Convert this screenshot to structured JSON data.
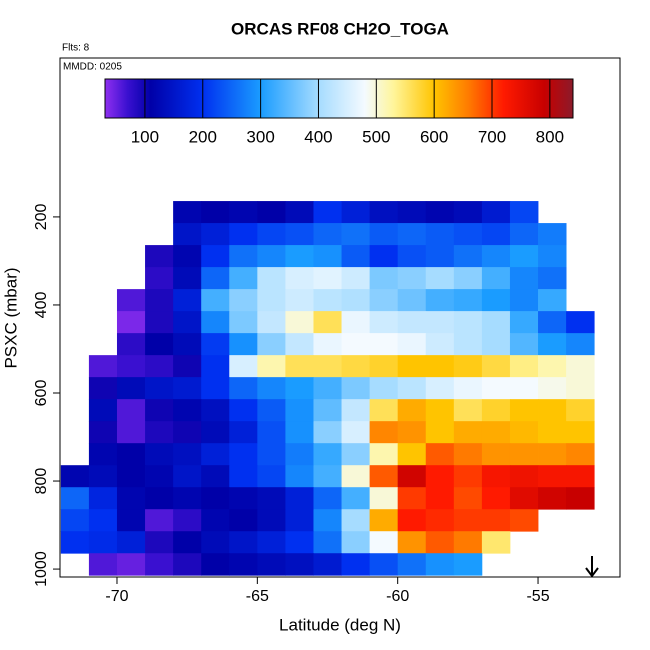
{
  "chart_data": {
    "type": "heatmap",
    "title": "ORCAS RF08 CH2O_TOGA",
    "annotations": [
      "Flts: 8",
      "MMDD: 0205"
    ],
    "x_label": "Latitude (deg N)",
    "y_label": "PSXC (mbar)",
    "xlim": [
      -72.03,
      -52.08
    ],
    "ylim": [
      1018,
      -161
    ],
    "xticks": [
      -70,
      -65,
      -60,
      -55
    ],
    "yticks": [
      200,
      400,
      600,
      800,
      1000
    ],
    "x_bins": [
      -72,
      -71,
      -70,
      -69,
      -68,
      -67,
      -66,
      -65,
      -64,
      -63,
      -62,
      -61,
      -60,
      -59,
      -58,
      -57,
      -56,
      -55,
      -54,
      -53
    ],
    "y_bins": [
      164,
      214,
      264,
      314,
      364,
      414,
      464,
      514,
      564,
      614,
      664,
      714,
      764,
      814,
      864,
      914,
      964,
      1014
    ],
    "values": [
      [
        null,
        null,
        null,
        null,
        120,
        110,
        120,
        110,
        130,
        200,
        170,
        140,
        130,
        120,
        130,
        160,
        220,
        null,
        null
      ],
      [
        null,
        null,
        null,
        null,
        150,
        170,
        200,
        220,
        230,
        250,
        260,
        240,
        250,
        240,
        230,
        220,
        250,
        270,
        null
      ],
      [
        null,
        null,
        null,
        90,
        120,
        200,
        260,
        280,
        300,
        290,
        240,
        200,
        230,
        240,
        260,
        280,
        300,
        280,
        null
      ],
      [
        null,
        null,
        null,
        80,
        130,
        250,
        330,
        420,
        450,
        460,
        440,
        370,
        380,
        400,
        380,
        330,
        280,
        260,
        null
      ],
      [
        null,
        null,
        60,
        90,
        170,
        330,
        380,
        420,
        440,
        420,
        410,
        380,
        360,
        330,
        320,
        300,
        280,
        320,
        null
      ],
      [
        null,
        null,
        40,
        90,
        150,
        280,
        370,
        430,
        500,
        560,
        470,
        440,
        430,
        430,
        420,
        400,
        320,
        250,
        200
      ],
      [
        null,
        null,
        80,
        110,
        130,
        210,
        290,
        380,
        430,
        470,
        480,
        480,
        470,
        440,
        420,
        400,
        340,
        300,
        280
      ],
      [
        null,
        60,
        70,
        80,
        100,
        200,
        450,
        520,
        560,
        560,
        570,
        580,
        600,
        600,
        590,
        570,
        540,
        520,
        500
      ],
      [
        null,
        100,
        130,
        150,
        160,
        200,
        250,
        280,
        300,
        330,
        370,
        400,
        420,
        450,
        470,
        480,
        480,
        490,
        500
      ],
      [
        null,
        130,
        60,
        100,
        120,
        140,
        200,
        240,
        290,
        350,
        430,
        560,
        620,
        600,
        560,
        580,
        600,
        600,
        580
      ],
      [
        null,
        100,
        60,
        90,
        100,
        130,
        170,
        230,
        290,
        380,
        450,
        650,
        640,
        600,
        620,
        620,
        610,
        600,
        600
      ],
      [
        null,
        120,
        110,
        130,
        140,
        170,
        200,
        230,
        270,
        320,
        380,
        520,
        600,
        680,
        660,
        640,
        640,
        640,
        650
      ],
      [
        120,
        130,
        110,
        120,
        150,
        130,
        200,
        220,
        280,
        330,
        500,
        680,
        780,
        720,
        700,
        730,
        740,
        730,
        730
      ],
      [
        250,
        180,
        120,
        110,
        120,
        110,
        120,
        130,
        170,
        250,
        330,
        500,
        700,
        720,
        690,
        720,
        760,
        780,
        790
      ],
      [
        220,
        200,
        120,
        60,
        80,
        120,
        110,
        130,
        170,
        280,
        400,
        620,
        720,
        710,
        700,
        700,
        690,
        null,
        null
      ],
      [
        200,
        190,
        170,
        90,
        110,
        130,
        150,
        170,
        200,
        260,
        380,
        480,
        640,
        680,
        660,
        550,
        null,
        null,
        null
      ],
      [
        null,
        60,
        50,
        70,
        90,
        110,
        120,
        130,
        140,
        160,
        200,
        230,
        260,
        290,
        300,
        null,
        null,
        null,
        null
      ]
    ],
    "colorbar": {
      "lim": [
        31,
        840
      ],
      "ticks": [
        100,
        200,
        300,
        400,
        500,
        600,
        700,
        800
      ],
      "stops": [
        {
          "value": 31,
          "color": "#8f2ff0"
        },
        {
          "value": 70,
          "color": "#3a10d0"
        },
        {
          "value": 110,
          "color": "#0000a8"
        },
        {
          "value": 200,
          "color": "#0030f0"
        },
        {
          "value": 300,
          "color": "#1a9cff"
        },
        {
          "value": 400,
          "color": "#a6dcff"
        },
        {
          "value": 480,
          "color": "#f4faff"
        },
        {
          "value": 530,
          "color": "#fff59a"
        },
        {
          "value": 600,
          "color": "#ffc400"
        },
        {
          "value": 660,
          "color": "#ff7a00"
        },
        {
          "value": 720,
          "color": "#ff1a00"
        },
        {
          "value": 790,
          "color": "#c80000"
        },
        {
          "value": 840,
          "color": "#8c1a2a"
        }
      ]
    }
  }
}
